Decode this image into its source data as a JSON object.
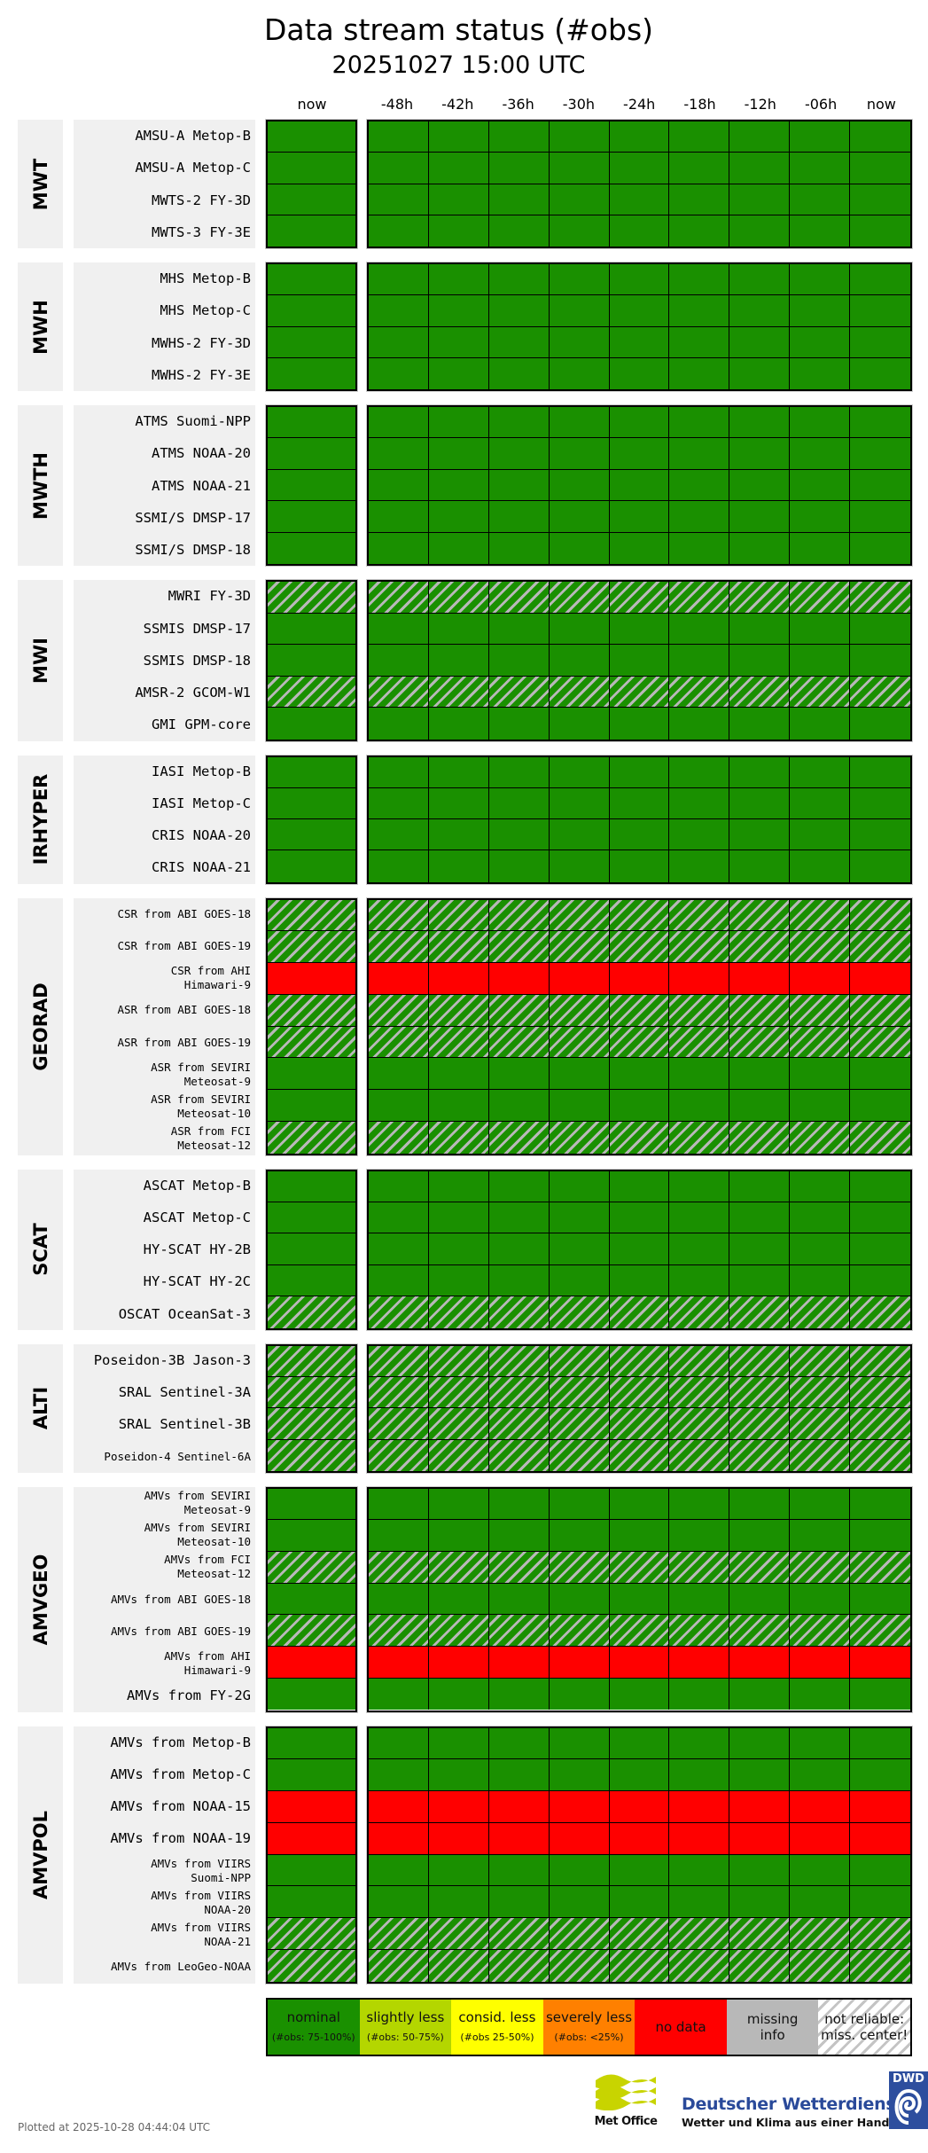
{
  "title": "Data stream status (#obs)",
  "subtitle": "20251027 15:00 UTC",
  "chart_data": {
    "type": "heatmap",
    "title": "Data stream status (#obs)",
    "subtitle": "20251027 15:00 UTC",
    "now_column_label": "now",
    "history_columns": [
      "-48h",
      "-42h",
      "-36h",
      "-30h",
      "-24h",
      "-18h",
      "-12h",
      "-06h",
      "now"
    ],
    "status_codes": {
      "N": "nominal",
      "U": "not reliable: miss. center!",
      "X": "no data"
    },
    "groups": [
      {
        "name": "MWT",
        "rows": [
          {
            "label": "AMSU-A Metop-B",
            "now": "N",
            "history": [
              "N",
              "N",
              "N",
              "N",
              "N",
              "N",
              "N",
              "N",
              "N"
            ]
          },
          {
            "label": "AMSU-A Metop-C",
            "now": "N",
            "history": [
              "N",
              "N",
              "N",
              "N",
              "N",
              "N",
              "N",
              "N",
              "N"
            ]
          },
          {
            "label": "MWTS-2 FY-3D",
            "now": "N",
            "history": [
              "N",
              "N",
              "N",
              "N",
              "N",
              "N",
              "N",
              "N",
              "N"
            ]
          },
          {
            "label": "MWTS-3 FY-3E",
            "now": "N",
            "history": [
              "N",
              "N",
              "N",
              "N",
              "N",
              "N",
              "N",
              "N",
              "N"
            ]
          }
        ]
      },
      {
        "name": "MWH",
        "rows": [
          {
            "label": "MHS Metop-B",
            "now": "N",
            "history": [
              "N",
              "N",
              "N",
              "N",
              "N",
              "N",
              "N",
              "N",
              "N"
            ]
          },
          {
            "label": "MHS Metop-C",
            "now": "N",
            "history": [
              "N",
              "N",
              "N",
              "N",
              "N",
              "N",
              "N",
              "N",
              "N"
            ]
          },
          {
            "label": "MWHS-2 FY-3D",
            "now": "N",
            "history": [
              "N",
              "N",
              "N",
              "N",
              "N",
              "N",
              "N",
              "N",
              "N"
            ]
          },
          {
            "label": "MWHS-2 FY-3E",
            "now": "N",
            "history": [
              "N",
              "N",
              "N",
              "N",
              "N",
              "N",
              "N",
              "N",
              "N"
            ]
          }
        ]
      },
      {
        "name": "MWTH",
        "rows": [
          {
            "label": "ATMS Suomi-NPP",
            "now": "N",
            "history": [
              "N",
              "N",
              "N",
              "N",
              "N",
              "N",
              "N",
              "N",
              "N"
            ]
          },
          {
            "label": "ATMS NOAA-20",
            "now": "N",
            "history": [
              "N",
              "N",
              "N",
              "N",
              "N",
              "N",
              "N",
              "N",
              "N"
            ]
          },
          {
            "label": "ATMS NOAA-21",
            "now": "N",
            "history": [
              "N",
              "N",
              "N",
              "N",
              "N",
              "N",
              "N",
              "N",
              "N"
            ]
          },
          {
            "label": "SSMI/S DMSP-17",
            "now": "N",
            "history": [
              "N",
              "N",
              "N",
              "N",
              "N",
              "N",
              "N",
              "N",
              "N"
            ]
          },
          {
            "label": "SSMI/S DMSP-18",
            "now": "N",
            "history": [
              "N",
              "N",
              "N",
              "N",
              "N",
              "N",
              "N",
              "N",
              "N"
            ]
          }
        ]
      },
      {
        "name": "MWI",
        "rows": [
          {
            "label": "MWRI FY-3D",
            "now": "U",
            "history": [
              "U",
              "U",
              "U",
              "U",
              "U",
              "U",
              "U",
              "U",
              "U"
            ]
          },
          {
            "label": "SSMIS DMSP-17",
            "now": "N",
            "history": [
              "N",
              "N",
              "N",
              "N",
              "N",
              "N",
              "N",
              "N",
              "N"
            ]
          },
          {
            "label": "SSMIS DMSP-18",
            "now": "N",
            "history": [
              "N",
              "N",
              "N",
              "N",
              "N",
              "N",
              "N",
              "N",
              "N"
            ]
          },
          {
            "label": "AMSR-2 GCOM-W1",
            "now": "U",
            "history": [
              "U",
              "U",
              "U",
              "U",
              "U",
              "U",
              "U",
              "U",
              "U"
            ]
          },
          {
            "label": "GMI GPM-core",
            "now": "N",
            "history": [
              "N",
              "N",
              "N",
              "N",
              "N",
              "N",
              "N",
              "N",
              "N"
            ]
          }
        ]
      },
      {
        "name": "IRHYPER",
        "rows": [
          {
            "label": "IASI Metop-B",
            "now": "N",
            "history": [
              "N",
              "N",
              "N",
              "N",
              "N",
              "N",
              "N",
              "N",
              "N"
            ]
          },
          {
            "label": "IASI Metop-C",
            "now": "N",
            "history": [
              "N",
              "N",
              "N",
              "N",
              "N",
              "N",
              "N",
              "N",
              "N"
            ]
          },
          {
            "label": "CRIS NOAA-20",
            "now": "N",
            "history": [
              "N",
              "N",
              "N",
              "N",
              "N",
              "N",
              "N",
              "N",
              "N"
            ]
          },
          {
            "label": "CRIS NOAA-21",
            "now": "N",
            "history": [
              "N",
              "N",
              "N",
              "N",
              "N",
              "N",
              "N",
              "N",
              "N"
            ]
          }
        ]
      },
      {
        "name": "GEORAD",
        "rows": [
          {
            "label": "CSR from ABI GOES-18",
            "small": true,
            "now": "U",
            "history": [
              "U",
              "U",
              "U",
              "U",
              "U",
              "U",
              "U",
              "U",
              "U"
            ]
          },
          {
            "label": "CSR from ABI GOES-19",
            "small": true,
            "now": "U",
            "history": [
              "U",
              "U",
              "U",
              "U",
              "U",
              "U",
              "U",
              "U",
              "U"
            ]
          },
          {
            "label": "CSR from AHI\nHimawari-9",
            "small": true,
            "now": "X",
            "history": [
              "X",
              "X",
              "X",
              "X",
              "X",
              "X",
              "X",
              "X",
              "X"
            ]
          },
          {
            "label": "ASR from ABI GOES-18",
            "small": true,
            "now": "U",
            "history": [
              "U",
              "U",
              "U",
              "U",
              "U",
              "U",
              "U",
              "U",
              "U"
            ]
          },
          {
            "label": "ASR from ABI GOES-19",
            "small": true,
            "now": "U",
            "history": [
              "U",
              "U",
              "U",
              "U",
              "U",
              "U",
              "U",
              "U",
              "U"
            ]
          },
          {
            "label": "ASR from SEVIRI\nMeteosat-9",
            "small": true,
            "now": "N",
            "history": [
              "N",
              "N",
              "N",
              "N",
              "N",
              "N",
              "N",
              "N",
              "N"
            ]
          },
          {
            "label": "ASR from SEVIRI\nMeteosat-10",
            "small": true,
            "now": "N",
            "history": [
              "N",
              "N",
              "N",
              "N",
              "N",
              "N",
              "N",
              "N",
              "N"
            ]
          },
          {
            "label": "ASR from FCI\nMeteosat-12",
            "small": true,
            "now": "U",
            "history": [
              "U",
              "U",
              "U",
              "U",
              "U",
              "U",
              "U",
              "U",
              "U"
            ]
          }
        ]
      },
      {
        "name": "SCAT",
        "rows": [
          {
            "label": "ASCAT Metop-B",
            "now": "N",
            "history": [
              "N",
              "N",
              "N",
              "N",
              "N",
              "N",
              "N",
              "N",
              "N"
            ]
          },
          {
            "label": "ASCAT Metop-C",
            "now": "N",
            "history": [
              "N",
              "N",
              "N",
              "N",
              "N",
              "N",
              "N",
              "N",
              "N"
            ]
          },
          {
            "label": "HY-SCAT HY-2B",
            "now": "N",
            "history": [
              "N",
              "N",
              "N",
              "N",
              "N",
              "N",
              "N",
              "N",
              "N"
            ]
          },
          {
            "label": "HY-SCAT HY-2C",
            "now": "N",
            "history": [
              "N",
              "N",
              "N",
              "N",
              "N",
              "N",
              "N",
              "N",
              "N"
            ]
          },
          {
            "label": "OSCAT OceanSat-3",
            "now": "U",
            "history": [
              "U",
              "U",
              "U",
              "U",
              "U",
              "U",
              "U",
              "U",
              "U"
            ]
          }
        ]
      },
      {
        "name": "ALTI",
        "rows": [
          {
            "label": "Poseidon-3B Jason-3",
            "now": "U",
            "history": [
              "U",
              "U",
              "U",
              "U",
              "U",
              "U",
              "U",
              "U",
              "U"
            ]
          },
          {
            "label": "SRAL Sentinel-3A",
            "now": "U",
            "history": [
              "U",
              "U",
              "U",
              "U",
              "U",
              "U",
              "U",
              "U",
              "U"
            ]
          },
          {
            "label": "SRAL Sentinel-3B",
            "now": "U",
            "history": [
              "U",
              "U",
              "U",
              "U",
              "U",
              "U",
              "U",
              "U",
              "U"
            ]
          },
          {
            "label": "Poseidon-4 Sentinel-6A",
            "small": true,
            "now": "U",
            "history": [
              "U",
              "U",
              "U",
              "U",
              "U",
              "U",
              "U",
              "U",
              "U"
            ]
          }
        ]
      },
      {
        "name": "AMVGEO",
        "rows": [
          {
            "label": "AMVs from SEVIRI\nMeteosat-9",
            "small": true,
            "now": "N",
            "history": [
              "N",
              "N",
              "N",
              "N",
              "N",
              "N",
              "N",
              "N",
              "N"
            ]
          },
          {
            "label": "AMVs from SEVIRI\nMeteosat-10",
            "small": true,
            "now": "N",
            "history": [
              "N",
              "N",
              "N",
              "N",
              "N",
              "N",
              "N",
              "N",
              "N"
            ]
          },
          {
            "label": "AMVs from FCI\nMeteosat-12",
            "small": true,
            "now": "U",
            "history": [
              "U",
              "U",
              "U",
              "U",
              "U",
              "U",
              "U",
              "U",
              "U"
            ]
          },
          {
            "label": "AMVs from ABI GOES-18",
            "small": true,
            "now": "N",
            "history": [
              "N",
              "N",
              "N",
              "N",
              "N",
              "N",
              "N",
              "N",
              "N"
            ]
          },
          {
            "label": "AMVs from ABI GOES-19",
            "small": true,
            "now": "U",
            "history": [
              "U",
              "U",
              "U",
              "U",
              "U",
              "U",
              "U",
              "U",
              "U"
            ]
          },
          {
            "label": "AMVs from AHI\nHimawari-9",
            "small": true,
            "now": "X",
            "history": [
              "X",
              "X",
              "X",
              "X",
              "X",
              "X",
              "X",
              "X",
              "X"
            ]
          },
          {
            "label": "AMVs from FY-2G",
            "now": "N",
            "history": [
              "N",
              "N",
              "N",
              "N",
              "N",
              "N",
              "N",
              "N",
              "N"
            ]
          }
        ]
      },
      {
        "name": "AMVPOL",
        "rows": [
          {
            "label": "AMVs from Metop-B",
            "now": "N",
            "history": [
              "N",
              "N",
              "N",
              "N",
              "N",
              "N",
              "N",
              "N",
              "N"
            ]
          },
          {
            "label": "AMVs from Metop-C",
            "now": "N",
            "history": [
              "N",
              "N",
              "N",
              "N",
              "N",
              "N",
              "N",
              "N",
              "N"
            ]
          },
          {
            "label": "AMVs from NOAA-15",
            "now": "X",
            "history": [
              "X",
              "X",
              "X",
              "X",
              "X",
              "X",
              "X",
              "X",
              "X"
            ]
          },
          {
            "label": "AMVs from NOAA-19",
            "now": "X",
            "history": [
              "X",
              "X",
              "X",
              "X",
              "X",
              "X",
              "X",
              "X",
              "X"
            ]
          },
          {
            "label": "AMVs from VIIRS\nSuomi-NPP",
            "small": true,
            "now": "N",
            "history": [
              "N",
              "N",
              "N",
              "N",
              "N",
              "N",
              "N",
              "N",
              "N"
            ]
          },
          {
            "label": "AMVs from VIIRS\nNOAA-20",
            "small": true,
            "now": "N",
            "history": [
              "N",
              "N",
              "N",
              "N",
              "N",
              "N",
              "N",
              "N",
              "N"
            ]
          },
          {
            "label": "AMVs from VIIRS\nNOAA-21",
            "small": true,
            "now": "U",
            "history": [
              "U",
              "U",
              "U",
              "U",
              "U",
              "U",
              "U",
              "U",
              "U"
            ]
          },
          {
            "label": "AMVs from LeoGeo-NOAA",
            "small": true,
            "now": "U",
            "history": [
              "U",
              "U",
              "U",
              "U",
              "U",
              "U",
              "U",
              "U",
              "U"
            ]
          }
        ]
      }
    ],
    "legend": [
      {
        "label": "nominal",
        "sub": "(#obs: 75-100%)",
        "color": "#1a9000"
      },
      {
        "label": "slightly less",
        "sub": "(#obs: 50-75%)",
        "color": "#b4d600"
      },
      {
        "label": "consid. less",
        "sub": "(#obs 25-50%)",
        "color": "#ffff00"
      },
      {
        "label": "severely less",
        "sub": "(#obs: <25%)",
        "color": "#ff8000"
      },
      {
        "label": "no data",
        "sub": "",
        "color": "#ff0000"
      },
      {
        "label": "missing\ninfo",
        "sub": "",
        "color": "#b8b8b8"
      },
      {
        "label": "not reliable:\nmiss. center!",
        "sub": "",
        "color": "hatched"
      }
    ]
  },
  "footer": {
    "plotted_at": "Plotted at 2025-10-28 04:44:04 UTC"
  },
  "logos": {
    "met_office": "Met Office",
    "dwd_name": "Deutscher Wetterdienst",
    "dwd_slogan": "Wetter und Klima aus einer Hand",
    "dwd_badge": "DWD"
  }
}
